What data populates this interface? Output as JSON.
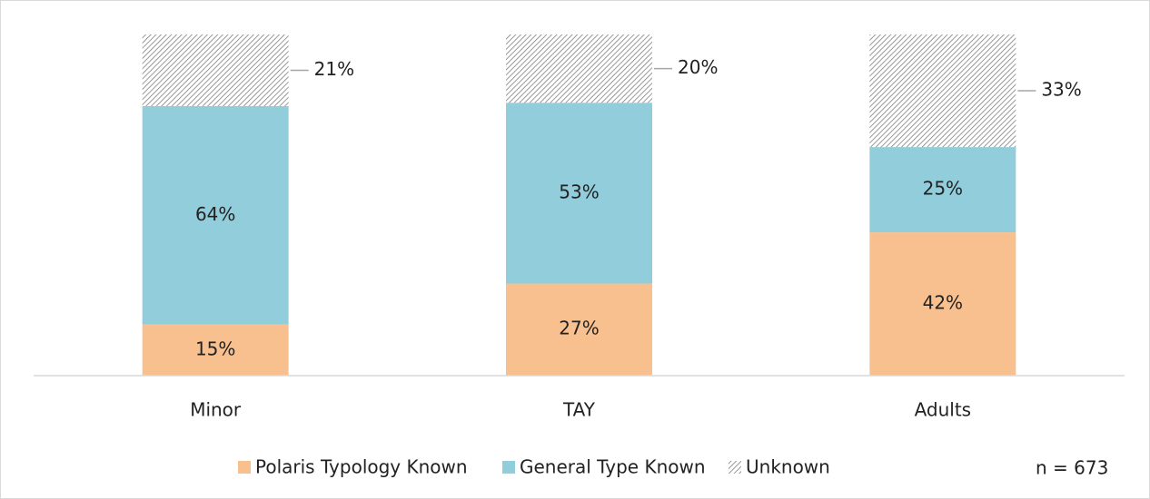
{
  "chart_data": {
    "type": "stacked-bar",
    "categories": [
      "Minor",
      "TAY",
      "Adults"
    ],
    "series": [
      {
        "name": "Polaris Typology Known",
        "color": "#f9c08f",
        "values": [
          15,
          27,
          42
        ],
        "value_labels": [
          "15%",
          "27%",
          "42%"
        ]
      },
      {
        "name": "General Type Known",
        "color": "#92cddb",
        "values": [
          64,
          53,
          25
        ],
        "value_labels": [
          "64%",
          "53%",
          "25%"
        ]
      },
      {
        "name": "Unknown",
        "color": "#7f7f7f",
        "pattern": "hatch",
        "values": [
          21,
          20,
          33
        ],
        "value_labels": [
          "21%",
          "20%",
          "33%"
        ]
      }
    ],
    "ylim": [
      0,
      100
    ],
    "annotation": "n = 673",
    "legend": "bottom"
  }
}
